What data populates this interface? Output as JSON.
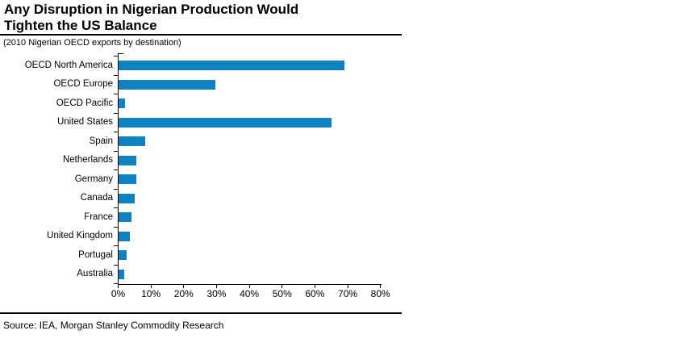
{
  "page": {
    "background": "#ffffff",
    "text_color": "#000000"
  },
  "header": {
    "title_lines": [
      "Any Disruption in Nigerian Production Would",
      "Tighten the US Balance"
    ],
    "subtitle": "(2010 Nigerian OECD exports by destination)"
  },
  "chart_data": {
    "type": "bar",
    "orientation": "horizontal",
    "title": "Any Disruption in Nigerian Production Would Tighten the US Balance",
    "subtitle": "(2010 Nigerian OECD exports by destination)",
    "categories": [
      "OECD North America",
      "OECD Europe",
      "OECD Pacific",
      "United States",
      "Spain",
      "Netherlands",
      "Germany",
      "Canada",
      "France",
      "United Kingdom",
      "Portugal",
      "Australia"
    ],
    "values": [
      69,
      29.5,
      2,
      65,
      8,
      5.5,
      5.5,
      5,
      4,
      3.5,
      2.5,
      1.8
    ],
    "unit": "%",
    "xlabel": "",
    "ylabel": "",
    "xlim": [
      0,
      80
    ],
    "x_ticks": [
      "0%",
      "10%",
      "20%",
      "30%",
      "40%",
      "50%",
      "60%",
      "70%",
      "80%"
    ],
    "grid": false,
    "legend": false,
    "bar_color": "#0d81c1",
    "axis_color": "#000000"
  },
  "footer": {
    "source": "Source: IEA, Morgan Stanley Commodity Research"
  }
}
